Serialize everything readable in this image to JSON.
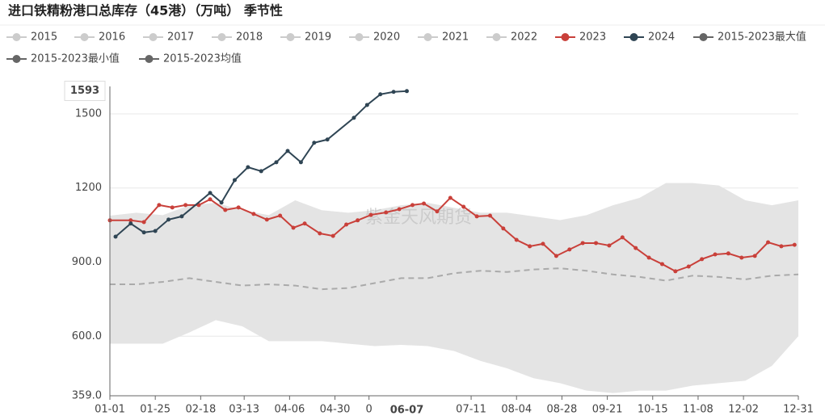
{
  "chart_data": {
    "type": "line",
    "title": "进口铁精粉港口总库存（45港）（万吨） 季节性",
    "watermark": "紫金天风期货",
    "xlim": [
      0,
      364
    ],
    "xticks": [
      {
        "value": 0,
        "label": "01-01"
      },
      {
        "value": 24,
        "label": "01-25"
      },
      {
        "value": 48,
        "label": "02-18"
      },
      {
        "value": 71,
        "label": "03-13"
      },
      {
        "value": 95,
        "label": "04-06"
      },
      {
        "value": 119,
        "label": "04-30"
      },
      {
        "value": 137,
        "label": "0"
      },
      {
        "value": 191,
        "label": "07-11"
      },
      {
        "value": 215,
        "label": "08-04"
      },
      {
        "value": 239,
        "label": "08-28"
      },
      {
        "value": 263,
        "label": "09-21"
      },
      {
        "value": 287,
        "label": "10-15"
      },
      {
        "value": 311,
        "label": "11-08"
      },
      {
        "value": 335,
        "label": "12-02"
      },
      {
        "value": 364,
        "label": "12-31"
      }
    ],
    "ylim": [
      359,
      1611
    ],
    "yticks": [
      {
        "value": 359,
        "label": "359.0"
      },
      {
        "value": 600,
        "label": "600.0"
      },
      {
        "value": 900,
        "label": "900.0"
      },
      1200,
      1500
    ],
    "grid": true,
    "pointer": {
      "x": {
        "value": 157,
        "label": "06-07"
      },
      "y": 1593
    },
    "band_color": "#e4e4e4",
    "series": [
      {
        "name": "2015",
        "color": "#cccccc",
        "inactive": true
      },
      {
        "name": "2016",
        "color": "#cccccc",
        "inactive": true
      },
      {
        "name": "2017",
        "color": "#cccccc",
        "inactive": true
      },
      {
        "name": "2018",
        "color": "#cccccc",
        "inactive": true
      },
      {
        "name": "2019",
        "color": "#cccccc",
        "inactive": true
      },
      {
        "name": "2020",
        "color": "#cccccc",
        "inactive": true
      },
      {
        "name": "2021",
        "color": "#cccccc",
        "inactive": true
      },
      {
        "name": "2022",
        "color": "#cccccc",
        "inactive": true
      },
      {
        "name": "2023",
        "color": "#c9403a",
        "x": [
          0,
          11,
          18,
          26,
          33,
          40,
          47,
          53,
          61,
          68,
          76,
          83,
          90,
          97,
          103,
          111,
          118,
          125,
          131,
          138,
          146,
          153,
          160,
          166,
          173,
          180,
          187,
          194,
          201,
          208,
          215,
          222,
          229,
          236,
          243,
          250,
          257,
          264,
          271,
          278,
          285,
          292,
          299,
          306,
          313,
          320,
          327,
          334,
          341,
          348,
          355,
          362
        ],
        "values": [
          1069,
          1069,
          1062,
          1131,
          1121,
          1131,
          1131,
          1154,
          1111,
          1121,
          1095,
          1072,
          1088,
          1039,
          1056,
          1016,
          1006,
          1052,
          1069,
          1091,
          1101,
          1114,
          1131,
          1137,
          1105,
          1160,
          1124,
          1085,
          1088,
          1036,
          990,
          964,
          974,
          925,
          951,
          977,
          977,
          967,
          1000,
          957,
          918,
          892,
          863,
          882,
          912,
          931,
          935,
          918,
          925,
          980,
          964,
          970
        ]
      },
      {
        "name": "2024",
        "color": "#2f4554",
        "x": [
          3,
          11,
          18,
          24,
          31,
          38,
          53,
          59,
          66,
          73,
          80,
          88,
          94,
          101,
          108,
          115,
          129,
          136,
          143,
          150,
          157
        ],
        "values": [
          1003,
          1056,
          1020,
          1026,
          1072,
          1085,
          1180,
          1141,
          1232,
          1284,
          1268,
          1304,
          1350,
          1304,
          1383,
          1396,
          1484,
          1536,
          1579,
          1589,
          1592
        ]
      },
      {
        "name": "2015-2023最大值",
        "color": "#666666",
        "role": "max",
        "x": [
          0,
          14,
          28,
          42,
          56,
          70,
          84,
          98,
          112,
          126,
          140,
          154,
          168,
          182,
          196,
          210,
          224,
          238,
          252,
          266,
          280,
          294,
          308,
          322,
          336,
          350,
          364
        ],
        "values": [
          1088,
          1100,
          1090,
          1130,
          1140,
          1110,
          1090,
          1150,
          1110,
          1100,
          1110,
          1130,
          1140,
          1120,
          1100,
          1100,
          1085,
          1070,
          1090,
          1130,
          1160,
          1220,
          1220,
          1210,
          1150,
          1130,
          1150
        ]
      },
      {
        "name": "2015-2023最小值",
        "color": "#666666",
        "role": "min",
        "x": [
          0,
          14,
          28,
          42,
          56,
          70,
          84,
          98,
          112,
          126,
          140,
          154,
          168,
          182,
          196,
          210,
          224,
          238,
          252,
          266,
          280,
          294,
          308,
          322,
          336,
          350,
          364
        ],
        "values": [
          570,
          570,
          570,
          615,
          665,
          640,
          580,
          580,
          580,
          570,
          560,
          565,
          560,
          540,
          500,
          470,
          430,
          410,
          380,
          370,
          380,
          380,
          400,
          410,
          420,
          480,
          600
        ]
      },
      {
        "name": "2015-2023均值",
        "color": "#666666",
        "role": "mean",
        "line_color": "#aaaaaa",
        "x": [
          0,
          14,
          28,
          42,
          56,
          70,
          84,
          98,
          112,
          126,
          140,
          154,
          168,
          182,
          196,
          210,
          224,
          238,
          252,
          266,
          280,
          294,
          308,
          322,
          336,
          350,
          364
        ],
        "values": [
          810,
          810,
          820,
          835,
          820,
          805,
          810,
          805,
          790,
          795,
          815,
          835,
          835,
          855,
          865,
          860,
          870,
          875,
          865,
          850,
          840,
          825,
          845,
          840,
          830,
          845,
          850
        ]
      }
    ]
  }
}
